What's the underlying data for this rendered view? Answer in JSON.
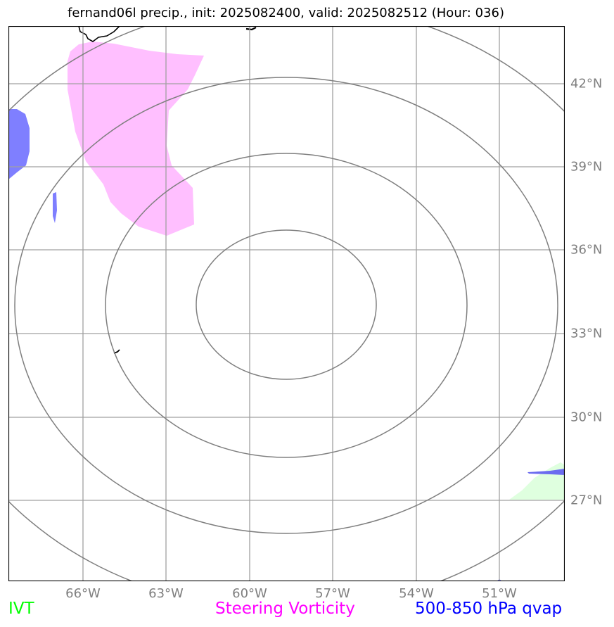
{
  "title": "fernand06l precip., init: 2025082400, valid: 2025082512 (Hour: 036)",
  "latitude_labels": [
    "42°N",
    "39°N",
    "36°N",
    "33°N",
    "30°N",
    "27°N"
  ],
  "longitude_labels": [
    "66°W",
    "63°W",
    "60°W",
    "57°W",
    "54°W",
    "51°W"
  ],
  "legend": {
    "ivt": {
      "label": "IVT",
      "color": "#00ff00"
    },
    "steering_vorticity": {
      "label": "Steering Vorticity",
      "color": "#ff00ff"
    },
    "qvap": {
      "label": "500-850 hPa qvap",
      "color": "#0000ff"
    }
  },
  "colors": {
    "gridline": "#a0a0a0",
    "contour": "#7f7f7f",
    "coastline": "#000000",
    "vorticity_fill": "#ffbfff",
    "qvap_fill": "#7f7fff",
    "ivt_fill": "#dfffdf"
  }
}
